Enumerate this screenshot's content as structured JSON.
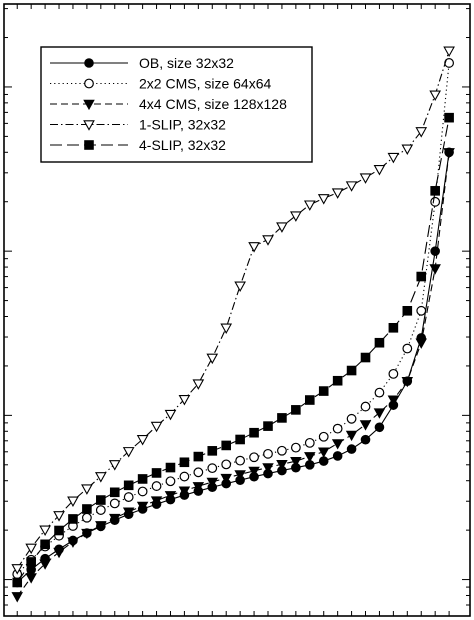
{
  "chart_data": {
    "type": "line",
    "x": [
      1,
      2,
      3,
      4,
      5,
      6,
      7,
      8,
      9,
      10,
      11,
      12,
      13,
      14,
      15,
      16,
      17,
      18,
      19,
      20,
      21,
      22,
      23,
      24,
      25,
      26,
      27,
      28,
      29,
      30,
      31,
      32
    ],
    "y_scale": "log",
    "ylim": [
      60,
      320000
    ],
    "xlim": [
      0.05,
      33.5
    ],
    "grid": false,
    "legend_position": "top-left",
    "series": [
      {
        "name": "OB, size 32x32",
        "marker": "filled-circle",
        "dash": "solid",
        "values": [
          96,
          115,
          134,
          153,
          173,
          192,
          211,
          230,
          250,
          269,
          288,
          307,
          327,
          346,
          365,
          384,
          403,
          423,
          442,
          461,
          480,
          500,
          527,
          566,
          623,
          711,
          846,
          1154,
          1615,
          2961,
          9999,
          40000
        ]
      },
      {
        "name": "2x2 CMS, size 64x64",
        "marker": "open-circle",
        "dash": "dotted",
        "values": [
          108,
          132,
          159,
          185,
          212,
          238,
          265,
          291,
          318,
          344,
          371,
          397,
          424,
          450,
          477,
          503,
          530,
          556,
          583,
          609,
          636,
          680,
          741,
          830,
          953,
          1131,
          1376,
          1789,
          2553,
          4333,
          19972,
          140000
        ]
      },
      {
        "name": "4x4 CMS, size 128x128",
        "marker": "filled-triangle-down",
        "dash": "dashed",
        "values": [
          79,
          103,
          125,
          147,
          170,
          192,
          214,
          237,
          259,
          281,
          303,
          326,
          348,
          370,
          393,
          415,
          437,
          459,
          482,
          504,
          526,
          563,
          601,
          675,
          760,
          880,
          1040,
          1246,
          1615,
          2769,
          7847,
          40000
        ]
      },
      {
        "name": "1-SLIP, 32x32",
        "marker": "open-triangle-down",
        "dash": "dash-dot",
        "values": [
          117,
          156,
          201,
          246,
          302,
          358,
          425,
          503,
          604,
          715,
          861,
          1018,
          1253,
          1560,
          2239,
          3414,
          6157,
          10699,
          11777,
          14107,
          16445,
          19185,
          20954,
          22726,
          25087,
          28029,
          31539,
          37348,
          42026,
          53610,
          89630,
          166000
        ]
      },
      {
        "name": "4-SLIP, 32x32",
        "marker": "filled-square",
        "dash": "long-dash",
        "values": [
          96,
          128,
          164,
          199,
          234,
          269,
          305,
          340,
          375,
          410,
          446,
          481,
          518,
          561,
          608,
          656,
          713,
          784,
          860,
          965,
          1080,
          1240,
          1406,
          1625,
          1875,
          2250,
          2769,
          3414,
          4333,
          7005,
          23300,
          65000
        ]
      }
    ]
  }
}
